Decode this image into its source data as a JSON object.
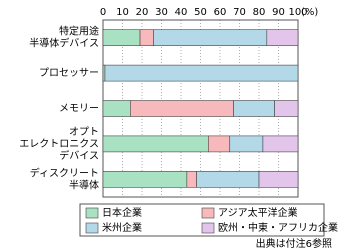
{
  "chart_data": {
    "type": "stacked_barh",
    "categories": [
      "特定用途\n半導体デバイス",
      "プロセッサー",
      "メモリー",
      "オプト\nエレクトロニクス\nデバイス",
      "ディスクリート\n半導体"
    ],
    "series": [
      {
        "name": "日本企業",
        "color": "#a9e2c3",
        "values": [
          19,
          1,
          14,
          54,
          43
        ]
      },
      {
        "name": "アジア太平洋企業",
        "color": "#f7b9bb",
        "values": [
          7,
          0,
          53,
          11,
          5
        ]
      },
      {
        "name": "米州企業",
        "color": "#b3d9e8",
        "values": [
          58,
          99,
          21,
          17,
          32
        ]
      },
      {
        "name": "欧州・中東・アフリカ企業",
        "color": "#e3c4ea",
        "values": [
          16,
          0,
          12,
          18,
          20
        ]
      }
    ],
    "xlim": [
      0,
      100
    ],
    "xticks": [
      0,
      10,
      20,
      30,
      40,
      50,
      60,
      70,
      80,
      90,
      100
    ],
    "x_unit": "(%)",
    "grid": true,
    "source": "出典は付注6参照"
  }
}
